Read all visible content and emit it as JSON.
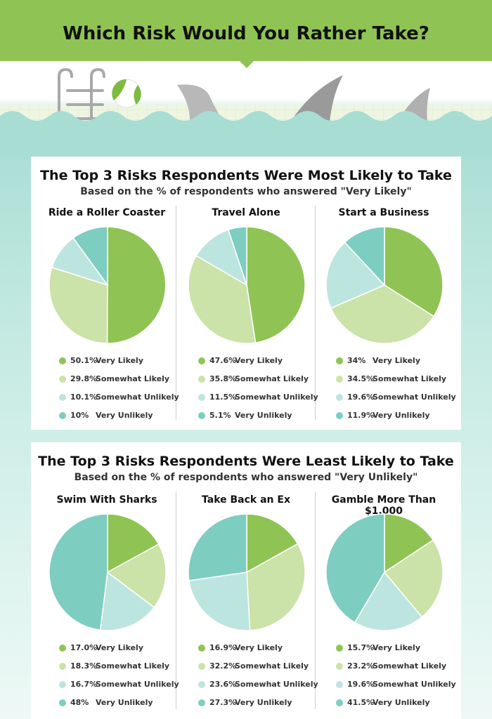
{
  "title": "Which Risk Would You Rather Take?",
  "colors": {
    "very_likely": "#8fc454",
    "somewhat_likely": "#cbe2a8",
    "somewhat_unlikely": "#bde5df",
    "very_unlikely": "#7dcdc0"
  },
  "chart_data": [
    {
      "type": "pie",
      "title": "The Top 3 Risks Respondents Were Most Likely to Take",
      "subtitle": "Based on the % of respondents who answered \"Very Likely\"",
      "charts": [
        {
          "title": "Ride a Roller Coaster",
          "slices": [
            {
              "label": "Very Likely",
              "value": 50.1,
              "text": "50.1%"
            },
            {
              "label": "Somewhat Likely",
              "value": 29.8,
              "text": "29.8%"
            },
            {
              "label": "Somewhat Unlikely",
              "value": 10.1,
              "text": "10.1%"
            },
            {
              "label": "Very Unlikely",
              "value": 10,
              "text": "10%"
            }
          ]
        },
        {
          "title": "Travel Alone",
          "slices": [
            {
              "label": "Very Likely",
              "value": 47.6,
              "text": "47.6%"
            },
            {
              "label": "Somewhat Likely",
              "value": 35.8,
              "text": "35.8%"
            },
            {
              "label": "Somewhat Unlikely",
              "value": 11.5,
              "text": "11.5%"
            },
            {
              "label": "Very Unlikely",
              "value": 5.1,
              "text": "5.1%"
            }
          ]
        },
        {
          "title": "Start a Business",
          "slices": [
            {
              "label": "Very Likely",
              "value": 34,
              "text": "34%"
            },
            {
              "label": "Somewhat Likely",
              "value": 34.5,
              "text": "34.5%"
            },
            {
              "label": "Somewhat Unlikely",
              "value": 19.6,
              "text": "19.6%"
            },
            {
              "label": "Very Unlikely",
              "value": 11.9,
              "text": "11.9%"
            }
          ]
        }
      ]
    },
    {
      "type": "pie",
      "title": "The Top 3 Risks Respondents Were Least Likely to Take",
      "subtitle": "Based on the % of respondents who answered \"Very Unlikely\"",
      "charts": [
        {
          "title": "Swim With Sharks",
          "slices": [
            {
              "label": "Very Likely",
              "value": 17.0,
              "text": "17.0%"
            },
            {
              "label": "Somewhat Likely",
              "value": 18.3,
              "text": "18.3%"
            },
            {
              "label": "Somewhat Unlikely",
              "value": 16.7,
              "text": "16.7%"
            },
            {
              "label": "Very Unlikely",
              "value": 48,
              "text": "48%"
            }
          ]
        },
        {
          "title": "Take Back an Ex",
          "slices": [
            {
              "label": "Very Likely",
              "value": 16.9,
              "text": "16.9%"
            },
            {
              "label": "Somewhat Likely",
              "value": 32.2,
              "text": "32.2%"
            },
            {
              "label": "Somewhat Unlikely",
              "value": 23.6,
              "text": "23.6%"
            },
            {
              "label": "Very Unlikely",
              "value": 27.3,
              "text": "27.3%"
            }
          ]
        },
        {
          "title": "Gamble More Than $1,000",
          "slices": [
            {
              "label": "Very Likely",
              "value": 15.7,
              "text": "15.7%"
            },
            {
              "label": "Somewhat Likely",
              "value": 23.2,
              "text": "23.2%"
            },
            {
              "label": "Somewhat Unlikely",
              "value": 19.6,
              "text": "19.6%"
            },
            {
              "label": "Very Unlikely",
              "value": 41.5,
              "text": "41.5%"
            }
          ]
        }
      ]
    }
  ]
}
